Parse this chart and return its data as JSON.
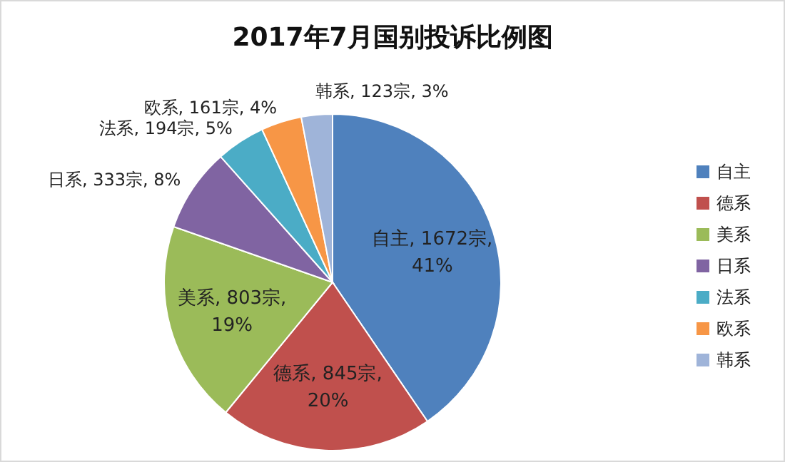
{
  "chart_data": {
    "type": "pie",
    "title": "2017年7月国别投诉比例图",
    "categories": [
      "自主",
      "德系",
      "美系",
      "日系",
      "法系",
      "欧系",
      "韩系"
    ],
    "values": [
      1672,
      845,
      803,
      333,
      194,
      161,
      123
    ],
    "colors": [
      "#4f81bd",
      "#c0504d",
      "#9bbb59",
      "#8064a2",
      "#4bacc6",
      "#f79646",
      "#9fb4d9"
    ],
    "value_labels": [
      "自主, 1672宗, 41%",
      "德系, 845宗, 20%",
      "美系, 803宗, 19%",
      "日系, 333宗, 8%",
      "法系, 194宗, 5%",
      "欧系, 161宗, 4%",
      "韩系, 123宗, 3%"
    ],
    "legend": "right"
  }
}
